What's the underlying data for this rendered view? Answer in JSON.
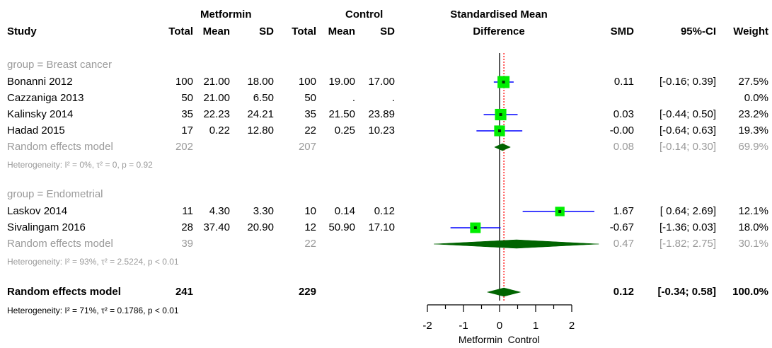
{
  "header": {
    "metformin": "Metformin",
    "control": "Control",
    "smd_title_1": "Standardised Mean",
    "smd_title_2": "Difference",
    "study": "Study",
    "total": "Total",
    "mean": "Mean",
    "sd": "SD",
    "smd": "SMD",
    "ci": "95%-CI",
    "weight": "Weight"
  },
  "groups": [
    {
      "label": "group = Breast cancer",
      "studies": [
        {
          "name": "Bonanni 2012",
          "m_total": "100",
          "m_mean": "21.00",
          "m_sd": "18.00",
          "c_total": "100",
          "c_mean": "19.00",
          "c_sd": "17.00",
          "smd": "0.11",
          "ci": "[-0.16; 0.39]",
          "weight": "27.5%"
        },
        {
          "name": "Cazzaniga 2013",
          "m_total": "50",
          "m_mean": "21.00",
          "m_sd": "6.50",
          "c_total": "50",
          "c_mean": ".",
          "c_sd": ".",
          "smd": "",
          "ci": "",
          "weight": "0.0%"
        },
        {
          "name": "Kalinsky 2014",
          "m_total": "35",
          "m_mean": "22.23",
          "m_sd": "24.21",
          "c_total": "35",
          "c_mean": "21.50",
          "c_sd": "23.89",
          "smd": "0.03",
          "ci": "[-0.44; 0.50]",
          "weight": "23.2%"
        },
        {
          "name": "Hadad 2015",
          "m_total": "17",
          "m_mean": "0.22",
          "m_sd": "12.80",
          "c_total": "22",
          "c_mean": "0.25",
          "c_sd": "10.23",
          "smd": "-0.00",
          "ci": "[-0.64; 0.63]",
          "weight": "19.3%"
        }
      ],
      "re_model": {
        "label": "Random effects model",
        "m_total": "202",
        "c_total": "207",
        "smd": "0.08",
        "ci": "[-0.14; 0.30]",
        "weight": "69.9%"
      },
      "heterogeneity": "Heterogeneity: I² = 0%, τ² = 0, p = 0.92"
    },
    {
      "label": "group = Endometrial",
      "studies": [
        {
          "name": "Laskov 2014",
          "m_total": "11",
          "m_mean": "4.30",
          "m_sd": "3.30",
          "c_total": "10",
          "c_mean": "0.14",
          "c_sd": "0.12",
          "smd": "1.67",
          "ci": "[ 0.64; 2.69]",
          "weight": "12.1%"
        },
        {
          "name": "Sivalingam 2016",
          "m_total": "28",
          "m_mean": "37.40",
          "m_sd": "20.90",
          "c_total": "12",
          "c_mean": "50.90",
          "c_sd": "17.10",
          "smd": "-0.67",
          "ci": "[-1.36; 0.03]",
          "weight": "18.0%"
        }
      ],
      "re_model": {
        "label": "Random effects model",
        "m_total": "39",
        "c_total": "22",
        "smd": "0.47",
        "ci": "[-1.82; 2.75]",
        "weight": "30.1%"
      },
      "heterogeneity": "Heterogeneity: I² = 93%, τ² = 2.5224, p < 0.01"
    }
  ],
  "overall": {
    "label": "Random effects model",
    "m_total": "241",
    "c_total": "229",
    "smd": "0.12",
    "ci": "[-0.34; 0.58]",
    "weight": "100.0%"
  },
  "overall_heterogeneity": "Heterogeneity: I² = 71%, τ² = 0.1786, p < 0.01",
  "axis": {
    "left_label": "Metformin",
    "right_label": "Control"
  },
  "colors": {
    "square": "#00ee00",
    "ci_line": "#0000ff",
    "diamond": "#006400",
    "reference_line": "#ff0000",
    "grey_text": "#9a9a9a"
  },
  "chart_data": {
    "type": "forest",
    "xlim": [
      -2,
      2
    ],
    "ticks": [
      -2,
      -1,
      0,
      1,
      2
    ],
    "reference_line": 0,
    "random_effects_overall_dotted_line": 0.12,
    "studies": [
      {
        "name": "Bonanni 2012",
        "smd": 0.11,
        "lower": -0.16,
        "upper": 0.39,
        "weight": 27.5
      },
      {
        "name": "Cazzaniga 2013",
        "smd": null,
        "lower": null,
        "upper": null,
        "weight": 0.0
      },
      {
        "name": "Kalinsky 2014",
        "smd": 0.03,
        "lower": -0.44,
        "upper": 0.5,
        "weight": 23.2
      },
      {
        "name": "Hadad 2015",
        "smd": -0.0,
        "lower": -0.64,
        "upper": 0.63,
        "weight": 19.3
      },
      {
        "name": "Laskov 2014",
        "smd": 1.67,
        "lower": 0.64,
        "upper": 2.69,
        "weight": 12.1
      },
      {
        "name": "Sivalingam 2016",
        "smd": -0.67,
        "lower": -1.36,
        "upper": 0.03,
        "weight": 18.0
      }
    ],
    "summaries": [
      {
        "name": "Breast cancer random effects",
        "smd": 0.08,
        "lower": -0.14,
        "upper": 0.3
      },
      {
        "name": "Endometrial random effects",
        "smd": 0.47,
        "lower": -1.82,
        "upper": 2.75
      },
      {
        "name": "Overall random effects",
        "smd": 0.12,
        "lower": -0.34,
        "upper": 0.58
      }
    ]
  }
}
